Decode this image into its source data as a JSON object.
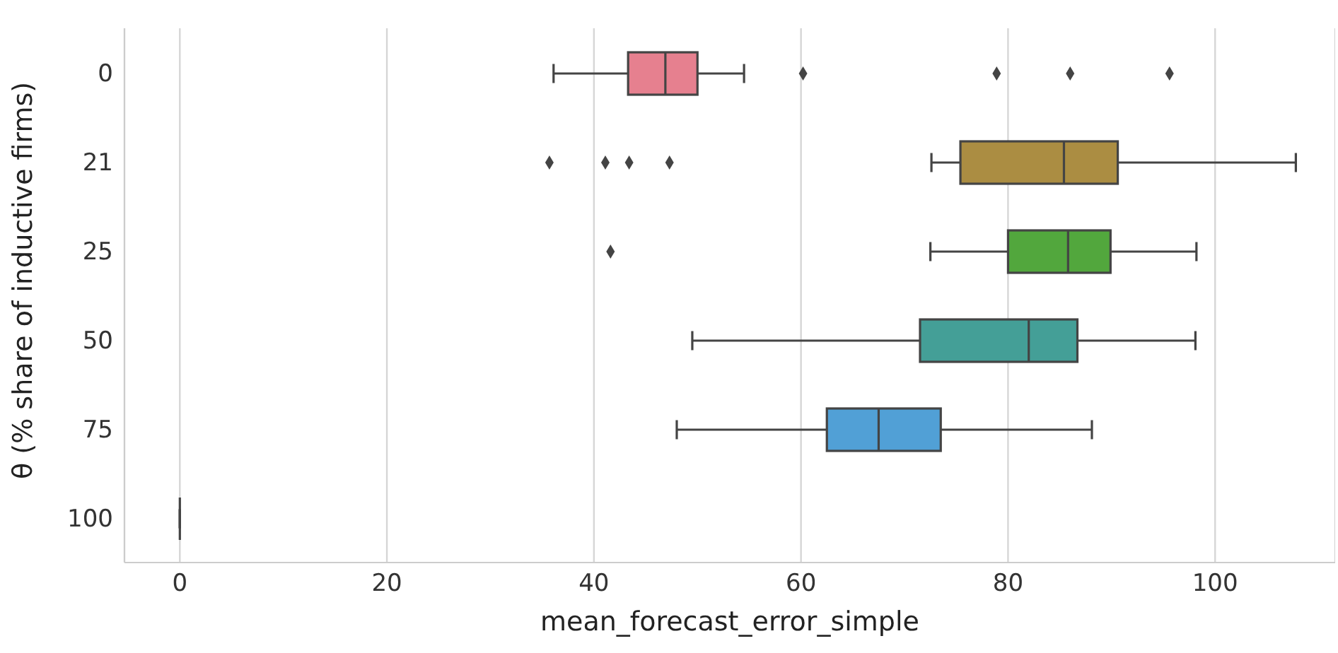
{
  "chart_data": {
    "type": "box",
    "orientation": "horizontal",
    "xlabel": "mean_forecast_error_simple",
    "ylabel": "θ (% share of inductive firms)",
    "categories": [
      "0",
      "21",
      "25",
      "50",
      "75",
      "100"
    ],
    "xlim": [
      -5.35,
      111.6
    ],
    "xticks": [
      0,
      20,
      40,
      60,
      80,
      100
    ],
    "grid": "x",
    "series": [
      {
        "colors": [
          "#e6808f",
          "#ab8d42",
          "#52a73d",
          "#449f97",
          "#51a0d6",
          "#444444"
        ],
        "boxes": [
          {
            "low": 36.1,
            "q1": 43.3,
            "median": 46.9,
            "q3": 50.0,
            "high": 54.5,
            "outliers": [
              60.2,
              78.9,
              86.0,
              95.6
            ]
          },
          {
            "low": 72.6,
            "q1": 75.4,
            "median": 85.4,
            "q3": 90.6,
            "high": 107.8,
            "outliers": [
              35.7,
              41.1,
              43.4,
              47.3
            ]
          },
          {
            "low": 72.5,
            "q1": 80.0,
            "median": 85.8,
            "q3": 89.9,
            "high": 98.2,
            "outliers": [
              41.6
            ]
          },
          {
            "low": 49.5,
            "q1": 71.5,
            "median": 82.0,
            "q3": 86.7,
            "high": 98.1
          },
          {
            "low": 48.0,
            "q1": 62.5,
            "median": 67.5,
            "q3": 73.5,
            "high": 88.1
          },
          {
            "low": 0,
            "q1": 0,
            "median": 0,
            "q3": 0,
            "high": 0
          }
        ]
      }
    ]
  }
}
